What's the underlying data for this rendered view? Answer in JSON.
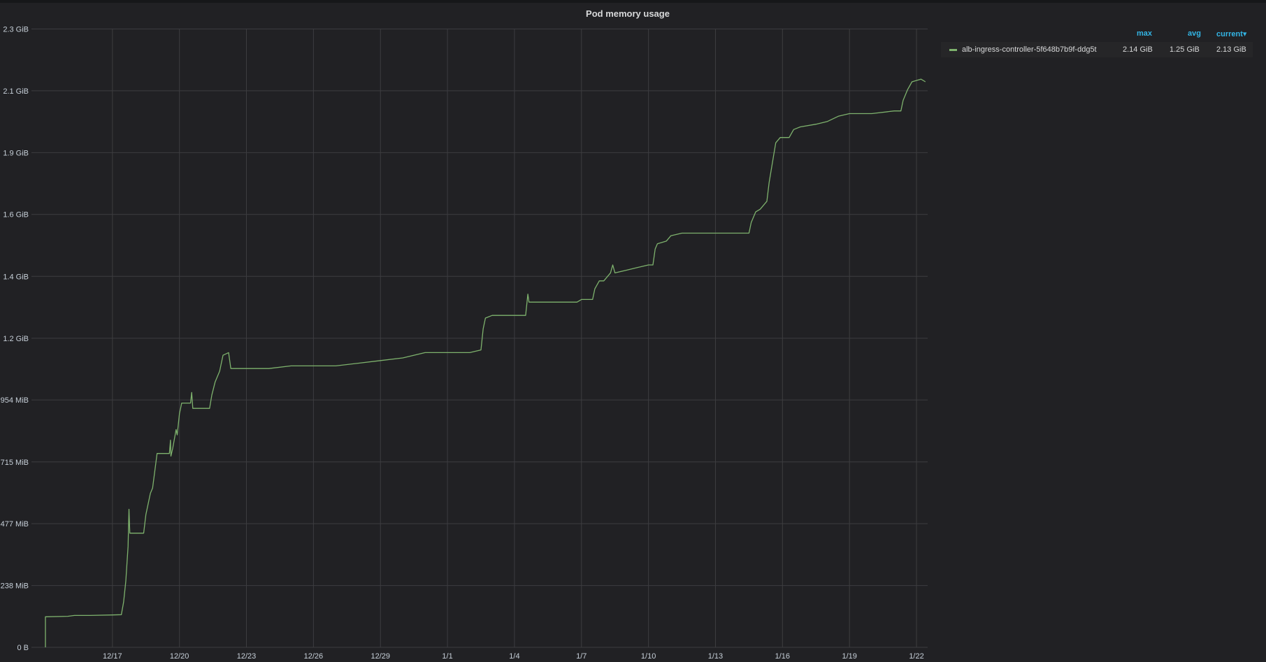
{
  "panel": {
    "title": "Pod memory usage"
  },
  "legend": {
    "columns": {
      "max": "max",
      "avg": "avg",
      "current": "current▾"
    },
    "rows": [
      {
        "name": "alb-ingress-controller-5f648b7b9f-ddg5t",
        "max": "2.14 GiB",
        "avg": "1.25 GiB",
        "current": "2.13 GiB",
        "color": "#7eb26d"
      }
    ]
  },
  "chart_data": {
    "type": "line",
    "title": "Pod memory usage",
    "xlabel": "",
    "ylabel": "",
    "x_range": [
      "12/14 15:00",
      "1/22 12:00"
    ],
    "y_range_gib": [
      0,
      2.33
    ],
    "grid": true,
    "legend_position": "right",
    "x_ticks": [
      {
        "label": "12/17",
        "day": 3
      },
      {
        "label": "12/20",
        "day": 6
      },
      {
        "label": "12/23",
        "day": 9
      },
      {
        "label": "12/26",
        "day": 12
      },
      {
        "label": "12/29",
        "day": 15
      },
      {
        "label": "1/1",
        "day": 18
      },
      {
        "label": "1/4",
        "day": 21
      },
      {
        "label": "1/7",
        "day": 24
      },
      {
        "label": "1/10",
        "day": 27
      },
      {
        "label": "1/13",
        "day": 30
      },
      {
        "label": "1/16",
        "day": 33
      },
      {
        "label": "1/19",
        "day": 36
      },
      {
        "label": "1/22",
        "day": 39
      }
    ],
    "y_ticks": [
      {
        "label": "0 B",
        "gib": 0
      },
      {
        "label": "238 MiB",
        "gib": 0.2327
      },
      {
        "label": "477 MiB",
        "gib": 0.4658
      },
      {
        "label": "715 MiB",
        "gib": 0.6982
      },
      {
        "label": "954 MiB",
        "gib": 0.9316
      },
      {
        "label": "1.2 GiB",
        "gib": 1.1641
      },
      {
        "label": "1.4 GiB",
        "gib": 1.3972
      },
      {
        "label": "1.6 GiB",
        "gib": 1.6304
      },
      {
        "label": "1.9 GiB",
        "gib": 1.8629
      },
      {
        "label": "2.1 GiB",
        "gib": 2.096
      },
      {
        "label": "2.3 GiB",
        "gib": 2.3291
      }
    ],
    "series": [
      {
        "name": "alb-ingress-controller-5f648b7b9f-ddg5t",
        "color": "#7eb26d",
        "unit": "GiB",
        "points": [
          [
            0.0,
            0.0
          ],
          [
            0.0,
            0.115
          ],
          [
            1.0,
            0.117
          ],
          [
            1.3,
            0.12
          ],
          [
            2.0,
            0.12
          ],
          [
            3.0,
            0.122
          ],
          [
            3.4,
            0.123
          ],
          [
            3.5,
            0.17
          ],
          [
            3.6,
            0.25
          ],
          [
            3.7,
            0.38
          ],
          [
            3.74,
            0.52
          ],
          [
            3.78,
            0.43
          ],
          [
            4.0,
            0.43
          ],
          [
            4.4,
            0.43
          ],
          [
            4.5,
            0.5
          ],
          [
            4.7,
            0.58
          ],
          [
            4.8,
            0.6
          ],
          [
            5.0,
            0.73
          ],
          [
            5.3,
            0.73
          ],
          [
            5.55,
            0.73
          ],
          [
            5.6,
            0.78
          ],
          [
            5.62,
            0.72
          ],
          [
            5.7,
            0.75
          ],
          [
            5.85,
            0.82
          ],
          [
            5.9,
            0.8
          ],
          [
            6.0,
            0.88
          ],
          [
            6.1,
            0.92
          ],
          [
            6.5,
            0.92
          ],
          [
            6.55,
            0.96
          ],
          [
            6.6,
            0.9
          ],
          [
            7.0,
            0.9
          ],
          [
            7.35,
            0.9
          ],
          [
            7.45,
            0.95
          ],
          [
            7.6,
            1.0
          ],
          [
            7.8,
            1.04
          ],
          [
            7.95,
            1.1
          ],
          [
            8.2,
            1.11
          ],
          [
            8.3,
            1.05
          ],
          [
            9.0,
            1.05
          ],
          [
            10.0,
            1.05
          ],
          [
            11.0,
            1.06
          ],
          [
            12.0,
            1.06
          ],
          [
            13.0,
            1.06
          ],
          [
            14.0,
            1.07
          ],
          [
            15.0,
            1.08
          ],
          [
            16.0,
            1.09
          ],
          [
            17.0,
            1.11
          ],
          [
            18.0,
            1.11
          ],
          [
            19.0,
            1.11
          ],
          [
            19.5,
            1.12
          ],
          [
            19.6,
            1.2
          ],
          [
            19.7,
            1.24
          ],
          [
            20.0,
            1.25
          ],
          [
            21.0,
            1.25
          ],
          [
            21.5,
            1.25
          ],
          [
            21.6,
            1.33
          ],
          [
            21.65,
            1.3
          ],
          [
            22.0,
            1.3
          ],
          [
            23.0,
            1.3
          ],
          [
            23.8,
            1.3
          ],
          [
            24.0,
            1.31
          ],
          [
            24.5,
            1.31
          ],
          [
            24.6,
            1.35
          ],
          [
            24.8,
            1.38
          ],
          [
            25.0,
            1.38
          ],
          [
            25.3,
            1.41
          ],
          [
            25.4,
            1.44
          ],
          [
            25.5,
            1.41
          ],
          [
            26.0,
            1.42
          ],
          [
            26.5,
            1.43
          ],
          [
            27.0,
            1.44
          ],
          [
            27.2,
            1.44
          ],
          [
            27.3,
            1.5
          ],
          [
            27.4,
            1.52
          ],
          [
            27.8,
            1.53
          ],
          [
            28.0,
            1.55
          ],
          [
            28.5,
            1.56
          ],
          [
            29.0,
            1.56
          ],
          [
            29.5,
            1.56
          ],
          [
            30.0,
            1.56
          ],
          [
            31.0,
            1.56
          ],
          [
            31.5,
            1.56
          ],
          [
            31.6,
            1.6
          ],
          [
            31.8,
            1.64
          ],
          [
            32.0,
            1.65
          ],
          [
            32.3,
            1.68
          ],
          [
            32.4,
            1.75
          ],
          [
            32.6,
            1.85
          ],
          [
            32.7,
            1.9
          ],
          [
            32.9,
            1.92
          ],
          [
            33.3,
            1.92
          ],
          [
            33.5,
            1.95
          ],
          [
            33.8,
            1.96
          ],
          [
            34.5,
            1.97
          ],
          [
            35.0,
            1.98
          ],
          [
            35.5,
            2.0
          ],
          [
            36.0,
            2.01
          ],
          [
            37.0,
            2.01
          ],
          [
            38.0,
            2.02
          ],
          [
            38.3,
            2.02
          ],
          [
            38.4,
            2.06
          ],
          [
            38.6,
            2.1
          ],
          [
            38.8,
            2.13
          ],
          [
            39.2,
            2.14
          ],
          [
            39.4,
            2.13
          ]
        ]
      }
    ]
  }
}
